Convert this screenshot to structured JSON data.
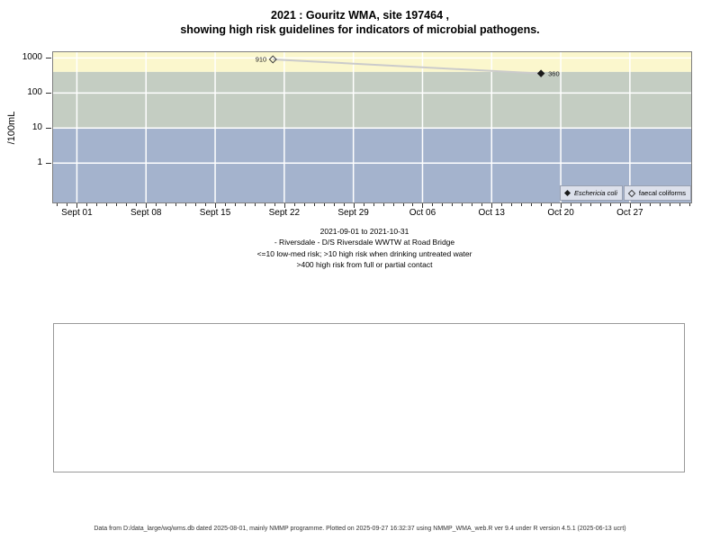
{
  "page": {
    "title_line1": "2021 : Gouritz WMA, site 197464 ,",
    "title_line2": "showing high risk guidelines for indicators of microbial pathogens.",
    "subtitle_lines": [
      "2021-09-01 to 2021-10-31",
      "- Riversdale - D/S Riversdale WWTW at Road Bridge",
      "<=10 low-med risk; >10 high risk when drinking untreated water",
      ">400 high risk from full or partial contact"
    ],
    "footer": "Data from D:/data_large/wq/wms.db dated 2025-08-01, mainly NMMP programme. Plotted on 2025-09-27 16:32:37 using NMMP_WMA_web.R ver 9.4 under R version 4.5.1 (2025-06-13 ucrt)"
  },
  "chart_data": {
    "type": "scatter",
    "title": "2021 : Gouritz WMA, site 197464 , showing high risk guidelines for indicators of microbial pathogens.",
    "xlabel": "",
    "ylabel": "/100mL",
    "y_scale": "log10",
    "y_ticks": [
      1000,
      100,
      10,
      1
    ],
    "y_log_range": [
      -1.15,
      3.19
    ],
    "x_tick_labels": [
      "Sept 01",
      "Sept 08",
      "Sept 15",
      "Sept 22",
      "Sept 29",
      "Oct 06",
      "Oct 13",
      "Oct 20",
      "Oct 27"
    ],
    "x_tick_days": [
      0,
      7,
      14,
      21,
      28,
      35,
      42,
      49,
      56
    ],
    "x_range_days": [
      -2.5,
      62.3
    ],
    "minor_ticks": "daily",
    "grid": "white major gridlines on",
    "bands": [
      {
        "meaning": ">400 high risk from full or partial contact",
        "from": 400,
        "to": 1600,
        "color": "#fbf7cd"
      },
      {
        "meaning": ">10 high risk when drinking untreated water",
        "from": 10,
        "to": 400,
        "color": "#c4cdc2"
      },
      {
        "meaning": "<=10 low-med risk",
        "from": 0.07,
        "to": 10,
        "color": "#a4b3cd"
      }
    ],
    "series": [
      {
        "name": "Eschericia coli",
        "marker": "filled-diamond",
        "points": [
          {
            "day": 47.0,
            "date_approx": "2021-10-18",
            "value": 360,
            "label": "360",
            "label_side": "right"
          }
        ]
      },
      {
        "name": "faecal coliforms",
        "marker": "open-diamond",
        "points": [
          {
            "day": 19.85,
            "date_approx": "2021-09-21",
            "value": 910,
            "label": "910",
            "label_side": "left"
          }
        ]
      }
    ],
    "connector_line": {
      "from": {
        "day": 19.85,
        "value": 910
      },
      "to": {
        "day": 47.0,
        "value": 360
      },
      "color": "#cbcbcb"
    },
    "legend": {
      "position": "bottom-right",
      "entries": [
        "Eschericia coli",
        "faecal coliforms"
      ]
    }
  }
}
